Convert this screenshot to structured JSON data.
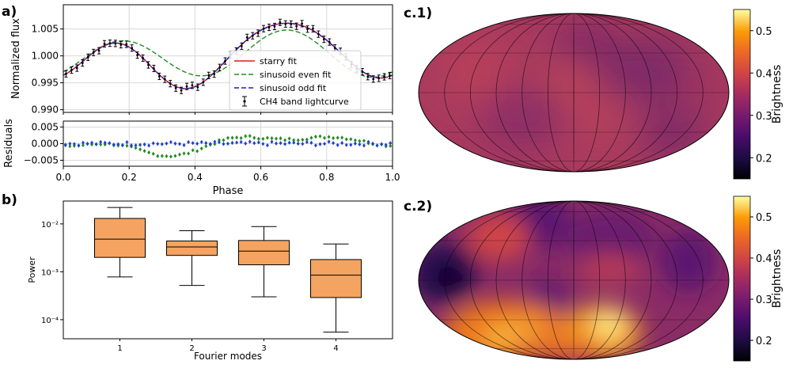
{
  "panels": {
    "a": "a)",
    "b": "b)",
    "c1": "c.1)",
    "c2": "c.2)"
  },
  "colors": {
    "starry": "#e41a1c",
    "even": "#228b22",
    "odd": "#1f1fbf",
    "data": "#000000",
    "even_resid": "#228b22",
    "odd_resid": "#1f3fd0",
    "box_fill": "#f4a460",
    "box_median": "#000000"
  },
  "chart_data": [
    {
      "id": "lightcurve",
      "type": "line",
      "ylabel": "Normalized flux",
      "xlim": [
        0,
        1.0
      ],
      "ylim": [
        0.9895,
        1.0095
      ],
      "yticks": [
        "0.990",
        "0.995",
        "1.000",
        "1.005"
      ],
      "ytick_values": [
        0.99,
        0.995,
        1.0,
        1.005
      ],
      "xticks": [
        0.0,
        0.2,
        0.4,
        0.6,
        0.8,
        1.0
      ],
      "grid": true,
      "legend_position": "lower-right",
      "series": [
        {
          "name": "starry fit",
          "style": "solid",
          "color_key": "starry",
          "amps": [
            1.0,
            0.0,
            0.0,
            0.0043,
            -0.55,
            0.002,
            -1.35,
            0.00045,
            0.3
          ]
        },
        {
          "name": "sinusoid even fit",
          "style": "dashed",
          "color_key": "even",
          "amps": [
            1.0,
            0.0,
            0.0,
            0.0,
            0.0,
            0.004,
            -0.75,
            0.0,
            0.0
          ]
        },
        {
          "name": "sinusoid odd fit",
          "style": "dashed",
          "color_key": "odd",
          "amps": [
            1.0,
            0.0,
            0.0,
            0.0043,
            -0.55,
            0.002,
            -1.35,
            0.00045,
            0.3
          ]
        },
        {
          "name": "CH4 band lightcurve",
          "style": "errorbar",
          "color_key": "data",
          "n": 60,
          "yerr": 0.0006
        }
      ]
    },
    {
      "id": "residuals",
      "type": "scatter",
      "xlabel": "Phase",
      "ylabel": "Residuals",
      "xlim": [
        0,
        1.0
      ],
      "ylim": [
        -0.0068,
        0.0068
      ],
      "yticks": [
        "0.005",
        "0.000",
        "−0.005"
      ],
      "ytick_values": [
        0.005,
        0.0,
        -0.005
      ],
      "xticks": [
        "0.0",
        "0.2",
        "0.4",
        "0.6",
        "0.8",
        "1.0"
      ],
      "xtick_values": [
        0.0,
        0.2,
        0.4,
        0.6,
        0.8,
        1.0
      ],
      "grid": true,
      "series": [
        {
          "name": "even residuals",
          "marker": "diamond",
          "color_key": "even_resid",
          "n": 75
        },
        {
          "name": "odd residuals",
          "marker": "diamond",
          "color_key": "odd_resid",
          "n": 75
        }
      ]
    },
    {
      "id": "power",
      "type": "box",
      "xlabel": "Fourier modes",
      "ylabel": "Power",
      "yscale": "log",
      "ylim": [
        4e-05,
        0.03
      ],
      "categories": [
        "1",
        "2",
        "3",
        "4"
      ],
      "yticks": [
        "10⁻²",
        "10⁻³",
        "10⁻⁴"
      ],
      "ytick_values": [
        0.01,
        0.001,
        0.0001
      ],
      "boxes": [
        {
          "whislo": 0.00078,
          "q1": 0.002,
          "med": 0.0048,
          "q3": 0.013,
          "whishi": 0.022
        },
        {
          "whislo": 0.00052,
          "q1": 0.0022,
          "med": 0.0033,
          "q3": 0.0044,
          "whishi": 0.0072
        },
        {
          "whislo": 0.0003,
          "q1": 0.0014,
          "med": 0.0027,
          "q3": 0.0045,
          "whishi": 0.0088
        },
        {
          "whislo": 5.5e-05,
          "q1": 0.00029,
          "med": 0.00085,
          "q3": 0.0018,
          "whishi": 0.0038
        }
      ]
    },
    {
      "id": "map1",
      "type": "heatmap",
      "projection": "mollweide",
      "colorbar_label": "Brightness",
      "clim": [
        0.15,
        0.55
      ],
      "colorbar_ticks": [
        "0.5",
        "0.4",
        "0.3",
        "0.2"
      ],
      "colorbar_tick_values": [
        0.5,
        0.4,
        0.3,
        0.2
      ]
    },
    {
      "id": "map2",
      "type": "heatmap",
      "projection": "mollweide",
      "colorbar_label": "Brightness",
      "clim": [
        0.15,
        0.55
      ],
      "colorbar_ticks": [
        "0.5",
        "0.4",
        "0.3",
        "0.2"
      ],
      "colorbar_tick_values": [
        0.5,
        0.4,
        0.3,
        0.2
      ]
    }
  ]
}
